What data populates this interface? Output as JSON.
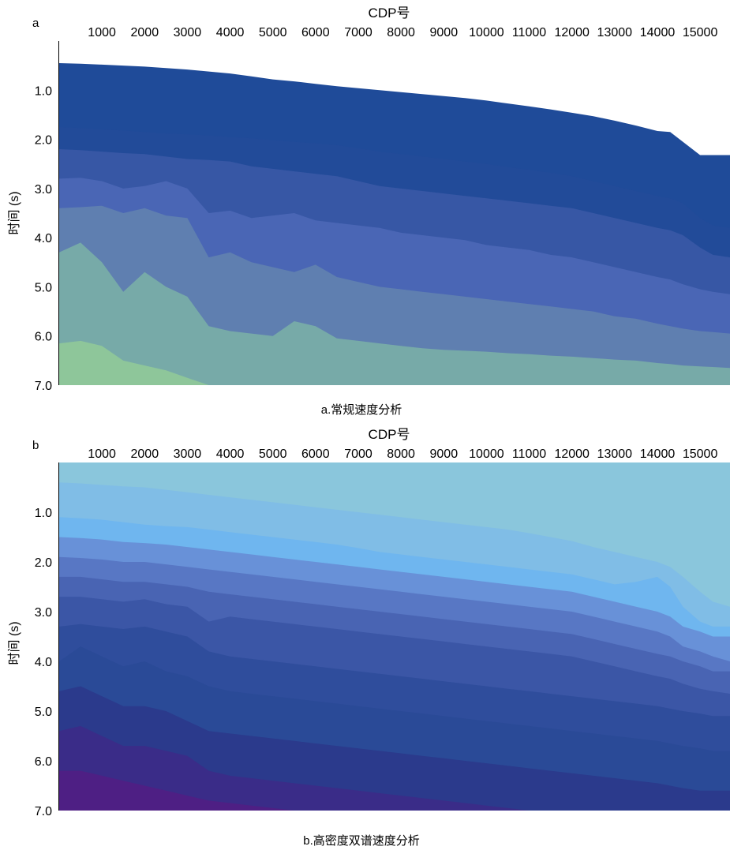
{
  "figure": {
    "panel_a": {
      "label": "a",
      "caption": "a.常规速度分析"
    },
    "panel_b": {
      "label": "b",
      "caption": "b.高密度双谱速度分析"
    }
  },
  "chart_data": [
    {
      "type": "area",
      "panel": "a",
      "title": "",
      "xlabel": "CDP号",
      "ylabel": "时间 (s)",
      "x_ticks": [
        "1000",
        "2000",
        "3000",
        "4000",
        "5000",
        "6000",
        "7000",
        "8000",
        "9000",
        "10000",
        "11000",
        "12000",
        "13000",
        "14000",
        "15000"
      ],
      "y_ticks": [
        "1.0",
        "2.0",
        "3.0",
        "4.0",
        "5.0",
        "6.0",
        "7.0"
      ],
      "xlim": [
        0,
        15700
      ],
      "ylim": [
        0,
        7.0
      ],
      "y_inverted": true,
      "x": [
        0,
        500,
        1000,
        1500,
        2000,
        2500,
        3000,
        3500,
        4000,
        4500,
        5000,
        5500,
        6000,
        6500,
        7000,
        7500,
        8000,
        8500,
        9000,
        9500,
        10000,
        10500,
        11000,
        11500,
        12000,
        12500,
        13000,
        13500,
        14000,
        14300,
        14600,
        15000,
        15300,
        15700
      ],
      "series": [
        {
          "color": "#1f4b99",
          "upper": [
            0.45,
            0.46,
            0.48,
            0.5,
            0.52,
            0.55,
            0.58,
            0.62,
            0.66,
            0.72,
            0.78,
            0.82,
            0.87,
            0.92,
            0.96,
            1.0,
            1.04,
            1.08,
            1.12,
            1.16,
            1.21,
            1.27,
            1.33,
            1.39,
            1.46,
            1.53,
            1.62,
            1.72,
            1.83,
            1.85,
            2.05,
            2.32,
            2.32,
            2.32
          ]
        },
        {
          "color": "#224b99",
          "upper": [
            1.75,
            1.77,
            1.8,
            1.82,
            1.85,
            1.88,
            1.9,
            1.92,
            1.95,
            1.98,
            2.02,
            2.05,
            2.08,
            2.12,
            2.18,
            2.25,
            2.3,
            2.35,
            2.4,
            2.45,
            2.5,
            2.56,
            2.62,
            2.68,
            2.75,
            2.85,
            2.95,
            3.05,
            3.15,
            3.2,
            3.3,
            3.6,
            3.75,
            3.8
          ]
        },
        {
          "color": "#3757a5",
          "upper": [
            2.2,
            2.22,
            2.25,
            2.28,
            2.3,
            2.35,
            2.4,
            2.42,
            2.45,
            2.55,
            2.6,
            2.65,
            2.7,
            2.75,
            2.85,
            2.95,
            3.0,
            3.05,
            3.1,
            3.15,
            3.2,
            3.25,
            3.3,
            3.35,
            3.4,
            3.5,
            3.6,
            3.7,
            3.8,
            3.85,
            3.95,
            4.2,
            4.35,
            4.4
          ]
        },
        {
          "color": "#4a66b5",
          "upper": [
            2.8,
            2.78,
            2.85,
            3.0,
            2.95,
            2.85,
            3.0,
            3.5,
            3.45,
            3.6,
            3.55,
            3.5,
            3.65,
            3.7,
            3.75,
            3.8,
            3.9,
            3.95,
            4.0,
            4.05,
            4.15,
            4.2,
            4.25,
            4.35,
            4.4,
            4.5,
            4.6,
            4.7,
            4.8,
            4.85,
            4.95,
            5.05,
            5.1,
            5.15
          ]
        },
        {
          "color": "#5f7fb0",
          "upper": [
            3.4,
            3.38,
            3.35,
            3.5,
            3.4,
            3.55,
            3.6,
            4.4,
            4.3,
            4.5,
            4.6,
            4.7,
            4.55,
            4.8,
            4.9,
            5.0,
            5.05,
            5.1,
            5.15,
            5.2,
            5.25,
            5.3,
            5.35,
            5.4,
            5.45,
            5.5,
            5.6,
            5.65,
            5.75,
            5.8,
            5.85,
            5.9,
            5.92,
            5.95
          ]
        },
        {
          "color": "#77aaa8",
          "upper": [
            4.3,
            4.1,
            4.5,
            5.1,
            4.7,
            5.0,
            5.2,
            5.8,
            5.9,
            5.95,
            6.0,
            5.7,
            5.8,
            6.05,
            6.1,
            6.15,
            6.2,
            6.25,
            6.28,
            6.3,
            6.32,
            6.35,
            6.37,
            6.4,
            6.42,
            6.45,
            6.48,
            6.5,
            6.55,
            6.57,
            6.6,
            6.62,
            6.63,
            6.65
          ]
        },
        {
          "color": "#8ec69a",
          "upper": [
            6.15,
            6.1,
            6.2,
            6.5,
            6.6,
            6.7,
            6.85,
            7.0,
            7.0,
            7.0,
            7.0,
            7.0,
            7.0,
            7.0,
            7.0,
            7.0,
            7.0,
            7.0,
            7.0,
            7.0,
            7.0,
            7.0,
            7.0,
            7.0,
            7.0,
            7.0,
            7.0,
            7.0,
            7.0,
            7.0,
            7.0,
            7.0,
            7.0,
            7.0
          ]
        },
        {
          "color": "#a1cf86",
          "upper": [
            7.0,
            7.0,
            7.0,
            7.0,
            7.0,
            7.0,
            7.0,
            7.0,
            7.0,
            7.0,
            7.0,
            7.0,
            7.0,
            7.0,
            7.0,
            7.0,
            7.0,
            7.0,
            7.0,
            7.0,
            7.0,
            7.0,
            7.0,
            7.0,
            7.0,
            7.0,
            7.0,
            7.0,
            7.0,
            7.0,
            7.0,
            7.0,
            7.0,
            7.0
          ]
        }
      ]
    },
    {
      "type": "area",
      "panel": "b",
      "title": "",
      "xlabel": "CDP号",
      "ylabel": "时间 (s)",
      "x_ticks": [
        "1000",
        "2000",
        "3000",
        "4000",
        "5000",
        "6000",
        "7000",
        "8000",
        "9000",
        "10000",
        "11000",
        "12000",
        "13000",
        "14000",
        "15000"
      ],
      "y_ticks": [
        "1.0",
        "2.0",
        "3.0",
        "4.0",
        "5.0",
        "6.0",
        "7.0"
      ],
      "xlim": [
        0,
        15700
      ],
      "ylim": [
        0,
        7.0
      ],
      "y_inverted": true,
      "x": [
        0,
        500,
        1000,
        1500,
        2000,
        2500,
        3000,
        3500,
        4000,
        4500,
        5000,
        5500,
        6000,
        6500,
        7000,
        7500,
        8000,
        8500,
        9000,
        9500,
        10000,
        10500,
        11000,
        11500,
        12000,
        12500,
        13000,
        13500,
        14000,
        14300,
        14600,
        15000,
        15300,
        15700
      ],
      "series": [
        {
          "color": "#8ac6dc",
          "upper": [
            0,
            0,
            0,
            0,
            0,
            0,
            0,
            0,
            0,
            0,
            0,
            0,
            0,
            0,
            0,
            0,
            0,
            0,
            0,
            0,
            0,
            0,
            0,
            0,
            0,
            0,
            0,
            0,
            0,
            0,
            0,
            0,
            0,
            0
          ]
        },
        {
          "color": "#80bde6",
          "upper": [
            0.4,
            0.42,
            0.45,
            0.48,
            0.5,
            0.55,
            0.6,
            0.65,
            0.7,
            0.75,
            0.8,
            0.85,
            0.9,
            0.95,
            1.0,
            1.05,
            1.1,
            1.15,
            1.2,
            1.25,
            1.3,
            1.35,
            1.42,
            1.5,
            1.58,
            1.7,
            1.8,
            1.9,
            2.0,
            2.1,
            2.3,
            2.6,
            2.8,
            2.9
          ]
        },
        {
          "color": "#6fb6ef",
          "upper": [
            1.1,
            1.12,
            1.15,
            1.2,
            1.25,
            1.28,
            1.3,
            1.35,
            1.4,
            1.45,
            1.5,
            1.55,
            1.6,
            1.65,
            1.72,
            1.8,
            1.85,
            1.9,
            1.95,
            2.0,
            2.05,
            2.1,
            2.15,
            2.2,
            2.25,
            2.35,
            2.45,
            2.4,
            2.3,
            2.5,
            2.9,
            3.2,
            3.3,
            3.3
          ]
        },
        {
          "color": "#6891d8",
          "upper": [
            1.5,
            1.52,
            1.55,
            1.6,
            1.62,
            1.65,
            1.7,
            1.75,
            1.8,
            1.85,
            1.9,
            1.95,
            2.0,
            2.05,
            2.1,
            2.15,
            2.2,
            2.25,
            2.3,
            2.35,
            2.4,
            2.45,
            2.5,
            2.55,
            2.6,
            2.7,
            2.8,
            2.9,
            3.0,
            3.1,
            3.3,
            3.4,
            3.5,
            3.5
          ]
        },
        {
          "color": "#5877c4",
          "upper": [
            1.9,
            1.92,
            1.95,
            2.0,
            2.0,
            2.05,
            2.1,
            2.15,
            2.2,
            2.25,
            2.3,
            2.35,
            2.4,
            2.45,
            2.5,
            2.55,
            2.6,
            2.65,
            2.7,
            2.75,
            2.8,
            2.85,
            2.9,
            2.95,
            3.0,
            3.1,
            3.2,
            3.3,
            3.4,
            3.5,
            3.7,
            3.8,
            3.9,
            4.0
          ]
        },
        {
          "color": "#4964b3",
          "upper": [
            2.3,
            2.3,
            2.35,
            2.4,
            2.4,
            2.45,
            2.5,
            2.6,
            2.65,
            2.7,
            2.75,
            2.8,
            2.85,
            2.9,
            2.95,
            3.0,
            3.05,
            3.1,
            3.15,
            3.2,
            3.25,
            3.3,
            3.35,
            3.4,
            3.45,
            3.55,
            3.65,
            3.75,
            3.85,
            3.9,
            4.0,
            4.1,
            4.2,
            4.2
          ]
        },
        {
          "color": "#3b56a6",
          "upper": [
            2.7,
            2.7,
            2.75,
            2.8,
            2.75,
            2.85,
            2.9,
            3.2,
            3.1,
            3.15,
            3.2,
            3.25,
            3.3,
            3.35,
            3.4,
            3.45,
            3.5,
            3.55,
            3.6,
            3.65,
            3.7,
            3.75,
            3.8,
            3.85,
            3.9,
            4.0,
            4.1,
            4.2,
            4.3,
            4.35,
            4.45,
            4.55,
            4.6,
            4.65
          ]
        },
        {
          "color": "#2f4d9c",
          "upper": [
            3.3,
            3.25,
            3.3,
            3.35,
            3.3,
            3.4,
            3.5,
            3.8,
            3.9,
            3.95,
            4.0,
            4.05,
            4.1,
            4.15,
            4.2,
            4.25,
            4.3,
            4.35,
            4.4,
            4.45,
            4.5,
            4.55,
            4.6,
            4.65,
            4.7,
            4.75,
            4.8,
            4.85,
            4.9,
            4.95,
            5.0,
            5.05,
            5.1,
            5.1
          ]
        },
        {
          "color": "#2a4a97",
          "upper": [
            4.0,
            3.7,
            3.9,
            4.1,
            4.0,
            4.2,
            4.3,
            4.5,
            4.6,
            4.65,
            4.7,
            4.75,
            4.8,
            4.85,
            4.9,
            4.95,
            5.0,
            5.05,
            5.1,
            5.15,
            5.2,
            5.25,
            5.3,
            5.35,
            5.4,
            5.45,
            5.5,
            5.55,
            5.6,
            5.65,
            5.7,
            5.75,
            5.8,
            5.8
          ]
        },
        {
          "color": "#2b3a8c",
          "upper": [
            4.6,
            4.5,
            4.7,
            4.9,
            4.9,
            5.0,
            5.2,
            5.4,
            5.45,
            5.5,
            5.55,
            5.6,
            5.65,
            5.7,
            5.75,
            5.8,
            5.85,
            5.9,
            5.95,
            6.0,
            6.05,
            6.1,
            6.15,
            6.2,
            6.25,
            6.3,
            6.35,
            6.4,
            6.45,
            6.5,
            6.55,
            6.6,
            6.6,
            6.6
          ]
        },
        {
          "color": "#3a2c88",
          "upper": [
            5.4,
            5.3,
            5.5,
            5.7,
            5.7,
            5.8,
            5.9,
            6.2,
            6.3,
            6.35,
            6.4,
            6.45,
            6.5,
            6.55,
            6.6,
            6.65,
            6.7,
            6.75,
            6.8,
            6.85,
            6.9,
            6.95,
            7.0,
            7.0,
            7.0,
            7.0,
            7.0,
            7.0,
            7.0,
            7.0,
            7.0,
            7.0,
            7.0,
            7.0
          ]
        },
        {
          "color": "#4e1f84",
          "upper": [
            6.2,
            6.2,
            6.3,
            6.4,
            6.5,
            6.6,
            6.7,
            6.8,
            6.85,
            6.9,
            6.95,
            7.0,
            7.0,
            7.0,
            7.0,
            7.0,
            7.0,
            7.0,
            7.0,
            7.0,
            7.0,
            7.0,
            7.0,
            7.0,
            7.0,
            7.0,
            7.0,
            7.0,
            7.0,
            7.0,
            7.0,
            7.0,
            7.0,
            7.0
          ]
        }
      ]
    }
  ]
}
